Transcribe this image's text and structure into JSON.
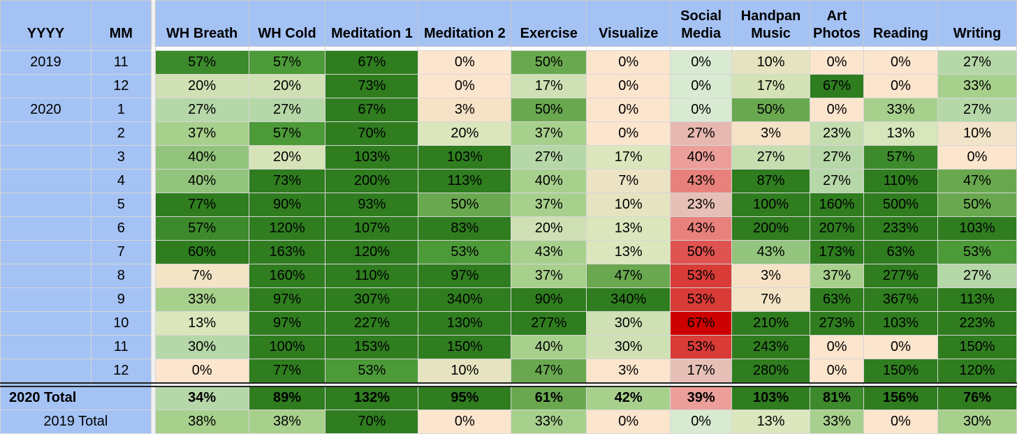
{
  "headers": {
    "yyyy": "YYYY",
    "mm": "MM",
    "columns": [
      [
        "WH Breath"
      ],
      [
        "WH Cold"
      ],
      [
        "Meditation 1"
      ],
      [
        "Meditation 2"
      ],
      [
        "Exercise"
      ],
      [
        "Visualize"
      ],
      [
        "Social",
        "Media"
      ],
      [
        "Handpan",
        "Music"
      ],
      [
        "Art",
        "Photos"
      ],
      [
        "Reading"
      ],
      [
        "Writing"
      ]
    ]
  },
  "rows": [
    {
      "year": "2019",
      "month": "11",
      "values": [
        "57%",
        "57%",
        "67%",
        "0%",
        "50%",
        "0%",
        "0%",
        "10%",
        "0%",
        "0%",
        "27%"
      ]
    },
    {
      "year": "",
      "month": "12",
      "values": [
        "20%",
        "20%",
        "73%",
        "0%",
        "17%",
        "0%",
        "0%",
        "17%",
        "67%",
        "0%",
        "33%"
      ]
    },
    {
      "year": "2020",
      "month": "1",
      "values": [
        "27%",
        "27%",
        "67%",
        "3%",
        "50%",
        "0%",
        "0%",
        "50%",
        "0%",
        "33%",
        "27%"
      ]
    },
    {
      "year": "",
      "month": "2",
      "values": [
        "37%",
        "57%",
        "70%",
        "20%",
        "37%",
        "0%",
        "27%",
        "3%",
        "23%",
        "13%",
        "10%"
      ]
    },
    {
      "year": "",
      "month": "3",
      "values": [
        "40%",
        "20%",
        "103%",
        "103%",
        "27%",
        "17%",
        "40%",
        "27%",
        "27%",
        "57%",
        "0%"
      ]
    },
    {
      "year": "",
      "month": "4",
      "values": [
        "40%",
        "73%",
        "200%",
        "113%",
        "40%",
        "7%",
        "43%",
        "87%",
        "27%",
        "110%",
        "47%"
      ]
    },
    {
      "year": "",
      "month": "5",
      "values": [
        "77%",
        "90%",
        "93%",
        "50%",
        "37%",
        "10%",
        "23%",
        "100%",
        "160%",
        "500%",
        "50%"
      ]
    },
    {
      "year": "",
      "month": "6",
      "values": [
        "57%",
        "120%",
        "107%",
        "83%",
        "20%",
        "13%",
        "43%",
        "200%",
        "207%",
        "233%",
        "103%"
      ]
    },
    {
      "year": "",
      "month": "7",
      "values": [
        "60%",
        "163%",
        "120%",
        "53%",
        "43%",
        "13%",
        "50%",
        "43%",
        "173%",
        "63%",
        "53%"
      ]
    },
    {
      "year": "",
      "month": "8",
      "values": [
        "7%",
        "160%",
        "110%",
        "97%",
        "37%",
        "47%",
        "53%",
        "3%",
        "37%",
        "277%",
        "27%"
      ]
    },
    {
      "year": "",
      "month": "9",
      "values": [
        "33%",
        "97%",
        "307%",
        "340%",
        "90%",
        "340%",
        "53%",
        "7%",
        "63%",
        "367%",
        "113%"
      ]
    },
    {
      "year": "",
      "month": "10",
      "values": [
        "13%",
        "97%",
        "227%",
        "130%",
        "277%",
        "30%",
        "67%",
        "210%",
        "273%",
        "103%",
        "223%"
      ]
    },
    {
      "year": "",
      "month": "11",
      "values": [
        "30%",
        "100%",
        "153%",
        "150%",
        "40%",
        "30%",
        "53%",
        "243%",
        "0%",
        "0%",
        "150%"
      ]
    },
    {
      "year": "",
      "month": "12",
      "values": [
        "0%",
        "77%",
        "53%",
        "10%",
        "47%",
        "3%",
        "17%",
        "280%",
        "0%",
        "150%",
        "120%"
      ]
    }
  ],
  "totals": [
    {
      "label": "2020 Total",
      "values": [
        "34%",
        "89%",
        "132%",
        "95%",
        "61%",
        "42%",
        "39%",
        "103%",
        "81%",
        "156%",
        "76%"
      ]
    },
    {
      "label": "2019 Total",
      "values": [
        "38%",
        "38%",
        "70%",
        "0%",
        "33%",
        "0%",
        "0%",
        "13%",
        "33%",
        "0%",
        "30%"
      ]
    }
  ],
  "colors": {
    "header_bg": "#a4c2f4",
    "rows": [
      [
        "#3d8a2c",
        "#4c9a38",
        "#2f7d1f",
        "#fce5cd",
        "#6aa84f",
        "#fce5cd",
        "#d9ead3",
        "#e6e4c0",
        "#fce5cd",
        "#fce5cd",
        "#b6d7a8"
      ],
      [
        "#cfe0b4",
        "#cfe0b4",
        "#2f7d1f",
        "#fce5cd",
        "#cfe0b4",
        "#fce5cd",
        "#d9ead3",
        "#d4e2b6",
        "#2f7d1f",
        "#fce5cd",
        "#a8d08d"
      ],
      [
        "#b6d7a8",
        "#b6d7a8",
        "#2f7d1f",
        "#f6e2c6",
        "#6aa84f",
        "#fce5cd",
        "#d9ead3",
        "#6aa84f",
        "#fce5cd",
        "#a8d08d",
        "#b6d7a8"
      ],
      [
        "#a8d08d",
        "#4c9a38",
        "#2f7d1f",
        "#dce6bd",
        "#a8d08d",
        "#fce5cd",
        "#e6b8b0",
        "#f6e2c6",
        "#c6ddb0",
        "#d7e6bb",
        "#f2e4c8"
      ],
      [
        "#93c47d",
        "#d6e3b8",
        "#2f7d1f",
        "#2f7d1f",
        "#b6d7a8",
        "#dbe6bd",
        "#ec9f9a",
        "#c6ddb0",
        "#b6d7a8",
        "#3d8a2c",
        "#fce5cd"
      ],
      [
        "#93c47d",
        "#2f7d1f",
        "#2f7d1f",
        "#2f7d1f",
        "#a8d08d",
        "#ece3c4",
        "#e8817c",
        "#2f7d1f",
        "#b6d7a8",
        "#2f7d1f",
        "#6aa84f"
      ],
      [
        "#2f7d1f",
        "#2f7d1f",
        "#2f7d1f",
        "#6aa84f",
        "#a8d08d",
        "#e6e4c0",
        "#e6c0b6",
        "#2f7d1f",
        "#2f7d1f",
        "#2f7d1f",
        "#6aa84f"
      ],
      [
        "#3d8a2c",
        "#2f7d1f",
        "#2f7d1f",
        "#2f7d1f",
        "#cfe0b4",
        "#dce6bd",
        "#e8817c",
        "#2f7d1f",
        "#2f7d1f",
        "#2f7d1f",
        "#2f7d1f"
      ],
      [
        "#2f7d1f",
        "#2f7d1f",
        "#2f7d1f",
        "#4c9a38",
        "#a8d08d",
        "#dce6bd",
        "#df5350",
        "#93c47d",
        "#2f7d1f",
        "#2f7d1f",
        "#4c9a38"
      ],
      [
        "#f3e4c6",
        "#2f7d1f",
        "#2f7d1f",
        "#2f7d1f",
        "#a8d08d",
        "#6aa84f",
        "#d93b37",
        "#f6e2c6",
        "#a8d08d",
        "#2f7d1f",
        "#b6d7a8"
      ],
      [
        "#a8d08d",
        "#2f7d1f",
        "#2f7d1f",
        "#2f7d1f",
        "#2f7d1f",
        "#2f7d1f",
        "#d93b37",
        "#f3e4c6",
        "#2f7d1f",
        "#2f7d1f",
        "#2f7d1f"
      ],
      [
        "#dce6bd",
        "#2f7d1f",
        "#2f7d1f",
        "#2f7d1f",
        "#2f7d1f",
        "#cfe0b4",
        "#cc0000",
        "#2f7d1f",
        "#2f7d1f",
        "#2f7d1f",
        "#2f7d1f"
      ],
      [
        "#b6d7a8",
        "#2f7d1f",
        "#2f7d1f",
        "#2f7d1f",
        "#a8d08d",
        "#cfe0b4",
        "#d93b37",
        "#2f7d1f",
        "#fce5cd",
        "#fce5cd",
        "#2f7d1f"
      ],
      [
        "#fce5cd",
        "#2f7d1f",
        "#4c9a38",
        "#e6e4c0",
        "#6aa84f",
        "#fce5cd",
        "#e6c0b6",
        "#2f7d1f",
        "#fce5cd",
        "#2f7d1f",
        "#2f7d1f"
      ]
    ],
    "totals": [
      [
        "#b6d7a8",
        "#2f7d1f",
        "#2f7d1f",
        "#2f7d1f",
        "#6aa84f",
        "#a8d08d",
        "#ec9f9a",
        "#2f7d1f",
        "#3d8a2c",
        "#2f7d1f",
        "#2f7d1f"
      ],
      [
        "#a8d08d",
        "#a8d08d",
        "#2f7d1f",
        "#fce5cd",
        "#a8d08d",
        "#fce5cd",
        "#d9ead3",
        "#dce6bd",
        "#a8d08d",
        "#fce5cd",
        "#a8d08d"
      ]
    ]
  }
}
